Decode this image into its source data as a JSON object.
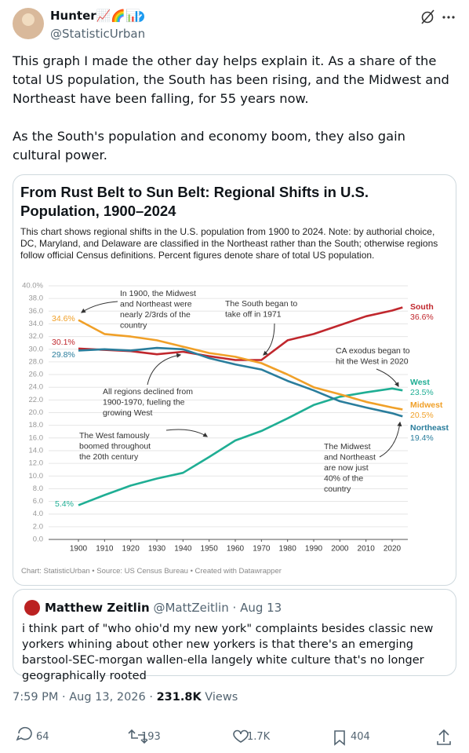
{
  "user": {
    "name": "Hunter📈🌈📊",
    "handle": "@StatisticUrban"
  },
  "tweet": {
    "paragraphs": [
      "This graph I made the other day helps explain it. As a share of the total US population, the South has been rising, and the Midwest and Northeast have been falling, for 55 years now.",
      "As the South's population and economy boom, they also gain cultural power."
    ]
  },
  "chart_data": {
    "type": "line",
    "title": "From Rust Belt to Sun Belt: Regional Shifts in U.S. Population, 1900–2024",
    "subtitle": "This chart shows regional shifts in the U.S. population from 1900 to 2024. Note: by authorial choice, DC, Maryland, and Delaware are classified in the Northeast rather than the South; otherwise regions follow official Census definitions. Percent figures denote share of total US population.",
    "source": "Chart: StatisticUrban • Source: US Census Bureau • Created with Datawrapper",
    "x": [
      1900,
      1910,
      1920,
      1930,
      1940,
      1950,
      1960,
      1970,
      1980,
      1990,
      2000,
      2010,
      2020,
      2024
    ],
    "xlim": [
      1888.6,
      2026
    ],
    "xticks": [
      1900,
      1910,
      1920,
      1930,
      1940,
      1950,
      1960,
      1970,
      1980,
      1990,
      2000,
      2010,
      2020
    ],
    "ylim": [
      0,
      40
    ],
    "yticks": [
      {
        "value": 0,
        "label": "0.0"
      },
      {
        "value": 2,
        "label": "2.0"
      },
      {
        "value": 4,
        "label": "4.0"
      },
      {
        "value": 6,
        "label": "6.0"
      },
      {
        "value": 8,
        "label": "8.0"
      },
      {
        "value": 10,
        "label": "10.0"
      },
      {
        "value": 12,
        "label": "12.0"
      },
      {
        "value": 14,
        "label": "14.0"
      },
      {
        "value": 16,
        "label": "16.0"
      },
      {
        "value": 18,
        "label": "18.0"
      },
      {
        "value": 20,
        "label": "20.0"
      },
      {
        "value": 22,
        "label": "22.0"
      },
      {
        "value": 24,
        "label": "24.0"
      },
      {
        "value": 26,
        "label": "26.0"
      },
      {
        "value": 28,
        "label": "28.0"
      },
      {
        "value": 30,
        "label": "30.0"
      },
      {
        "value": 32,
        "label": "32.0"
      },
      {
        "value": 34,
        "label": "34.0"
      },
      {
        "value": 36,
        "label": "36.0"
      },
      {
        "value": 38,
        "label": "38.0"
      },
      {
        "value": 40,
        "label": "40.0%"
      }
    ],
    "grid": true,
    "series": [
      {
        "name": "South",
        "color": "#c0272d",
        "values": [
          30.1,
          29.9,
          29.7,
          29.2,
          29.6,
          28.9,
          28.3,
          28.3,
          31.4,
          32.4,
          33.8,
          35.2,
          36.1,
          36.6
        ],
        "value_labels": [
          "30.1%",
          null,
          null,
          null,
          null,
          null,
          null,
          null,
          null,
          null,
          null,
          null,
          null,
          "36.6%"
        ]
      },
      {
        "name": "West",
        "color": "#1fae94",
        "values": [
          5.4,
          7.0,
          8.5,
          9.6,
          10.5,
          13.0,
          15.6,
          17.1,
          19.1,
          21.2,
          22.5,
          23.2,
          23.8,
          23.5
        ],
        "value_labels": [
          "5.4%",
          null,
          null,
          null,
          null,
          null,
          null,
          null,
          null,
          null,
          null,
          null,
          null,
          "23.5%"
        ]
      },
      {
        "name": "Midwest",
        "color": "#f0a028",
        "values": [
          34.6,
          32.4,
          32.0,
          31.4,
          30.4,
          29.4,
          28.8,
          27.8,
          26.0,
          24.0,
          22.9,
          21.7,
          20.8,
          20.5
        ],
        "value_labels": [
          "34.6%",
          null,
          null,
          null,
          null,
          null,
          null,
          null,
          null,
          null,
          null,
          null,
          null,
          "20.5%"
        ]
      },
      {
        "name": "Northeast",
        "color": "#2a7d9c",
        "values": [
          29.8,
          30.0,
          29.8,
          30.2,
          30.0,
          28.6,
          27.6,
          26.8,
          25.0,
          23.5,
          21.8,
          20.8,
          19.9,
          19.4
        ],
        "value_labels": [
          "29.8%",
          null,
          null,
          null,
          null,
          null,
          null,
          null,
          null,
          null,
          null,
          null,
          null,
          "19.4%"
        ]
      }
    ],
    "annotations": [
      {
        "lines": [
          "In 1900, the Midwest",
          "and Northeast were",
          "nearly 2/3rds of the",
          "country"
        ]
      },
      {
        "lines": [
          "The South began to",
          "take off in 1971"
        ]
      },
      {
        "lines": [
          "CA exodus began to",
          "hit the West in 2020"
        ]
      },
      {
        "lines": [
          "All regions declined from",
          "1900-1970, fueling the",
          "growing West"
        ]
      },
      {
        "lines": [
          "The West famously",
          "boomed throughout",
          "the 20th century"
        ]
      },
      {
        "lines": [
          "The Midwest",
          "and Northeast",
          "are now just",
          "40% of the",
          "country"
        ]
      }
    ]
  },
  "quote": {
    "name": "Matthew Zeitlin",
    "handle": "@MattZeitlin",
    "separator": "·",
    "date": "Aug 13",
    "text": "i think part of \"who ohio'd my new york\" complaints besides classic new yorkers whining about other new yorkers is that there's an emerging barstool-SEC-morgan wallen-ella langely white culture that's no longer geographically rooted"
  },
  "meta": {
    "time": "7:59 PM · Aug 13, 2026",
    "separator": "·",
    "views": "231.8K",
    "views_label": "Views"
  },
  "actions": {
    "replies": 64,
    "reposts": 193,
    "likes": "1.7K",
    "bookmarks": 404
  }
}
